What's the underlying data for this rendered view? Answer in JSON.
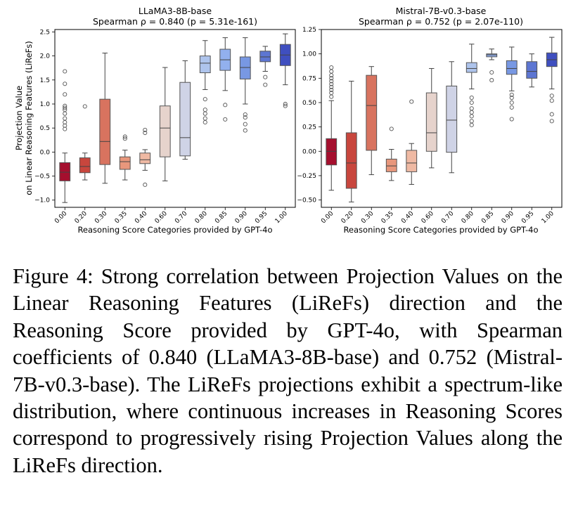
{
  "figure": {
    "xlabel": "Reasoning Score Categories provided by GPT-4o",
    "ylabel_line1": "Projection Value",
    "ylabel_line2": "on Linear Reasoning Features (LiReFs)"
  },
  "chart_data": [
    {
      "type": "box",
      "title": "LLaMA3-8B-base",
      "subtitle": "Spearman ρ = 0.840 (p = 5.31e-161)",
      "xlabel": "Reasoning Score Categories provided by GPT-4o",
      "ylabel": "Projection Value on Linear Reasoning Features (LiReFs)",
      "ylim": [
        -1.15,
        2.55
      ],
      "yticks": [
        -1.0,
        -0.5,
        0.0,
        0.5,
        1.0,
        1.5,
        2.0,
        2.5
      ],
      "ytick_labels": [
        "−1.0",
        "−0.5",
        "0.0",
        "0.5",
        "1.0",
        "1.5",
        "2.0",
        "2.5"
      ],
      "categories": [
        "0.00",
        "0.20",
        "0.30",
        "0.35",
        "0.40",
        "0.60",
        "0.70",
        "0.80",
        "0.85",
        "0.90",
        "0.95",
        "1.00"
      ],
      "colors": [
        "#a50f2e",
        "#c8463d",
        "#d8735f",
        "#e8977c",
        "#efb9a3",
        "#e6d3cc",
        "#cfd3e6",
        "#aec4ec",
        "#92b0ee",
        "#7898e3",
        "#5d76d2",
        "#3f4fc0"
      ],
      "boxes": [
        {
          "q1": -0.6,
          "median": -0.42,
          "q3": -0.22,
          "whislo": -1.05,
          "whishi": -0.02,
          "fliers": [
            0.48,
            0.55,
            0.62,
            0.7,
            0.8,
            0.88,
            0.92,
            0.96,
            1.2,
            1.42,
            1.68
          ]
        },
        {
          "q1": -0.43,
          "median": -0.3,
          "q3": -0.12,
          "whislo": -0.58,
          "whishi": -0.02,
          "fliers": [
            0.95
          ]
        },
        {
          "q1": -0.26,
          "median": 0.22,
          "q3": 1.1,
          "whislo": -0.65,
          "whishi": 2.06,
          "fliers": []
        },
        {
          "q1": -0.36,
          "median": -0.2,
          "q3": -0.1,
          "whislo": -0.58,
          "whishi": 0.04,
          "fliers": [
            0.28,
            0.32
          ]
        },
        {
          "q1": -0.24,
          "median": -0.16,
          "q3": -0.02,
          "whislo": -0.38,
          "whishi": 0.05,
          "fliers": [
            0.4,
            0.46,
            -0.68
          ]
        },
        {
          "q1": -0.1,
          "median": 0.5,
          "q3": 0.96,
          "whislo": -0.6,
          "whishi": 1.76,
          "fliers": []
        },
        {
          "q1": -0.08,
          "median": 0.3,
          "q3": 1.45,
          "whislo": -0.15,
          "whishi": 1.9,
          "fliers": []
        },
        {
          "q1": 1.65,
          "median": 1.85,
          "q3": 2.0,
          "whislo": 1.3,
          "whishi": 2.32,
          "fliers": [
            1.1,
            0.88,
            0.8,
            0.7,
            0.62
          ]
        },
        {
          "q1": 1.7,
          "median": 1.92,
          "q3": 2.14,
          "whislo": 1.28,
          "whishi": 2.38,
          "fliers": [
            0.98,
            0.68
          ]
        },
        {
          "q1": 1.52,
          "median": 1.76,
          "q3": 1.98,
          "whislo": 1.0,
          "whishi": 2.38,
          "fliers": [
            0.78,
            0.72,
            0.58,
            0.45
          ]
        },
        {
          "q1": 1.88,
          "median": 1.98,
          "q3": 2.1,
          "whislo": 1.68,
          "whishi": 2.2,
          "fliers": [
            1.56,
            1.4
          ]
        },
        {
          "q1": 1.8,
          "median": 2.02,
          "q3": 2.24,
          "whislo": 1.4,
          "whishi": 2.46,
          "fliers": [
            1.0,
            0.96
          ]
        }
      ]
    },
    {
      "type": "box",
      "title": "Mistral-7B-v0.3-base",
      "subtitle": "Spearman ρ = 0.752 (p = 2.07e-110)",
      "xlabel": "Reasoning Score Categories provided by GPT-4o",
      "ylabel": "",
      "ylim": [
        -0.575,
        1.25
      ],
      "yticks": [
        -0.5,
        -0.25,
        0.0,
        0.25,
        0.5,
        0.75,
        1.0,
        1.25
      ],
      "ytick_labels": [
        "−0.50",
        "−0.25",
        "0.00",
        "0.25",
        "0.50",
        "0.75",
        "1.00",
        "1.25"
      ],
      "categories": [
        "0.00",
        "0.20",
        "0.30",
        "0.35",
        "0.40",
        "0.60",
        "0.70",
        "0.80",
        "0.85",
        "0.90",
        "0.95",
        "1.00"
      ],
      "colors": [
        "#a50f2e",
        "#c8463d",
        "#d8735f",
        "#e8977c",
        "#efb9a3",
        "#e6d3cc",
        "#cfd3e6",
        "#aec4ec",
        "#92b0ee",
        "#7898e3",
        "#5d76d2",
        "#3f4fc0"
      ],
      "boxes": [
        {
          "q1": -0.14,
          "median": 0.0,
          "q3": 0.13,
          "whislo": -0.4,
          "whishi": 0.52,
          "fliers": [
            0.56,
            0.6,
            0.63,
            0.66,
            0.69,
            0.72,
            0.75,
            0.78,
            0.82,
            0.86
          ]
        },
        {
          "q1": -0.38,
          "median": -0.12,
          "q3": 0.19,
          "whislo": -0.52,
          "whishi": 0.72,
          "fliers": []
        },
        {
          "q1": 0.01,
          "median": 0.47,
          "q3": 0.78,
          "whislo": -0.24,
          "whishi": 0.87,
          "fliers": []
        },
        {
          "q1": -0.21,
          "median": -0.15,
          "q3": -0.08,
          "whislo": -0.3,
          "whishi": 0.02,
          "fliers": [
            0.23
          ]
        },
        {
          "q1": -0.21,
          "median": -0.12,
          "q3": 0.01,
          "whislo": -0.34,
          "whishi": 0.08,
          "fliers": [
            0.51
          ]
        },
        {
          "q1": 0.0,
          "median": 0.19,
          "q3": 0.6,
          "whislo": -0.17,
          "whishi": 0.85,
          "fliers": []
        },
        {
          "q1": -0.01,
          "median": 0.32,
          "q3": 0.67,
          "whislo": -0.22,
          "whishi": 0.92,
          "fliers": []
        },
        {
          "q1": 0.81,
          "median": 0.85,
          "q3": 0.91,
          "whislo": 0.64,
          "whishi": 1.1,
          "fliers": [
            0.55,
            0.5,
            0.44,
            0.4,
            0.36,
            0.31,
            0.27
          ]
        },
        {
          "q1": 0.97,
          "median": 0.99,
          "q3": 1.0,
          "whislo": 0.94,
          "whishi": 1.05,
          "fliers": [
            0.81,
            0.73
          ]
        },
        {
          "q1": 0.79,
          "median": 0.85,
          "q3": 0.93,
          "whislo": 0.62,
          "whishi": 1.07,
          "fliers": [
            0.58,
            0.55,
            0.5,
            0.45,
            0.33
          ]
        },
        {
          "q1": 0.75,
          "median": 0.82,
          "q3": 0.92,
          "whislo": 0.66,
          "whishi": 1.0,
          "fliers": []
        },
        {
          "q1": 0.87,
          "median": 0.94,
          "q3": 1.01,
          "whislo": 0.64,
          "whishi": 1.17,
          "fliers": [
            0.57,
            0.52,
            0.38,
            0.31
          ]
        }
      ]
    }
  ],
  "caption": {
    "label": "Figure 4:",
    "text": "Strong correlation between Projection Values on the Linear Reasoning Features (LiReFs) direction and the Reasoning Score provided by GPT-4o, with Spearman coefficients of 0.840 (LLaMA3-8B-base) and 0.752 (Mistral-7B-v0.3-base). The LiReFs projections exhibit a spectrum-like distribution, where continuous increases in Reasoning Scores correspond to progres­sively rising Projection Values along the LiReFs direc­tion."
  }
}
